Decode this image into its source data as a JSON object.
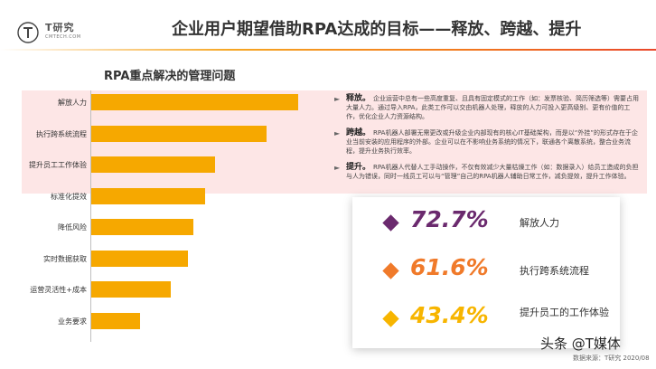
{
  "brand": {
    "logo_text": "T研究",
    "logo_sub": "CMTECH.COM"
  },
  "page_title": "企业用户期望借助RPA达成的目标——释放、跨越、提升",
  "colors": {
    "bar": "#f6a800",
    "highlight_band": "#fde6e6",
    "stat1": "#6b2a6e",
    "stat2": "#f07a2a",
    "stat3": "#f7b500"
  },
  "chart_data": {
    "type": "bar",
    "orientation": "horizontal",
    "title": "RPA重点解决的管理问题",
    "categories": [
      "解放人力",
      "执行跨系统流程",
      "提升员工工作体验",
      "标准化提效",
      "降低风险",
      "实时数据获取",
      "运营灵活性+成本",
      "业务要求"
    ],
    "values": [
      72.7,
      61.6,
      43.4,
      40,
      36,
      34,
      28,
      17
    ],
    "xlim": [
      0,
      100
    ],
    "grid": false,
    "legend": "none"
  },
  "bullets": [
    {
      "lead": "释放。",
      "text": "企业运营中总有一些高度重复、且具有固定模式的工作（如：发票核验、简历筛选等）需要占用大量人力。通过导入RPA，此类工作可以交由机器人处理，释放的人力可投入更高级别、更有价值的工作，优化企业人力资源结构。"
    },
    {
      "lead": "跨越。",
      "text": "RPA机器人部署无需更改或升级企业内部现有的核心IT基础架构，而是以“外挂”的形式存在于企业当前安装的应用程序的外部。企业可以在不影响业务系统的情况下，联通各个离散系统，整合业务流程，提升业务执行效率。"
    },
    {
      "lead": "提升。",
      "text": "RPA机器人代替人工手动操作，不仅有效减少大量枯燥工作（如：数据录入）给员工造成的负担与人为错误，同时一线员工可以与“管理”自己的RPA机器人辅助日常工作，减负提效，提升工作体验。"
    }
  ],
  "stats": [
    {
      "value": "72.7%",
      "label": "解放人力",
      "color": "#6b2a6e"
    },
    {
      "value": "61.6%",
      "label": "执行跨系统流程",
      "color": "#f07a2a"
    },
    {
      "value": "43.4%",
      "label": "提升员工的工作体验",
      "color": "#f7b500"
    }
  ],
  "watermark": "头条 @T媒体",
  "source": "数据来源：T研究 2020/08"
}
